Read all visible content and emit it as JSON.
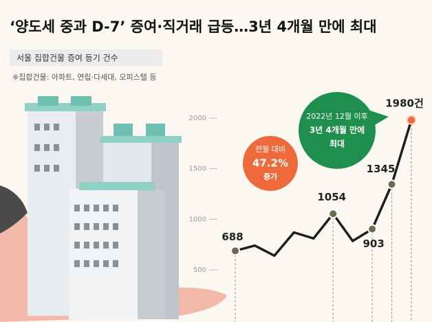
{
  "chart_data": {
    "type": "line",
    "title": "‘양도세 중과 D-7’ 증여·직거래 급등…3년 4개월 만에 최대",
    "subtitle": "서울 집합건물 증여 등기 건수",
    "note": "※집합건물: 아파트, 연립·다세대, 오피스텔 등",
    "categories": [
      null,
      null,
      null,
      null,
      null,
      null,
      null,
      null,
      null,
      null
    ],
    "series": [
      {
        "name": null,
        "color": "#1f1f1f",
        "values": [
          688,
          740,
          640,
          870,
          810,
          1054,
          785,
          903,
          1345,
          1980
        ],
        "value_labels": [
          "688",
          null,
          null,
          null,
          null,
          "1054",
          null,
          "903",
          "1345",
          "1980건"
        ]
      }
    ],
    "ylim": [
      300,
      2200
    ],
    "yticks": [
      500,
      1000,
      1500,
      2000
    ],
    "annotations": [
      {
        "lines": [
          "전월 대비",
          "47.2%",
          "증가"
        ],
        "color": "#ef6a3a"
      },
      {
        "lines": [
          "2022년 12월 이후",
          "3년 4개월 만에",
          "최대"
        ],
        "color": "#1f8f4e"
      }
    ]
  }
}
